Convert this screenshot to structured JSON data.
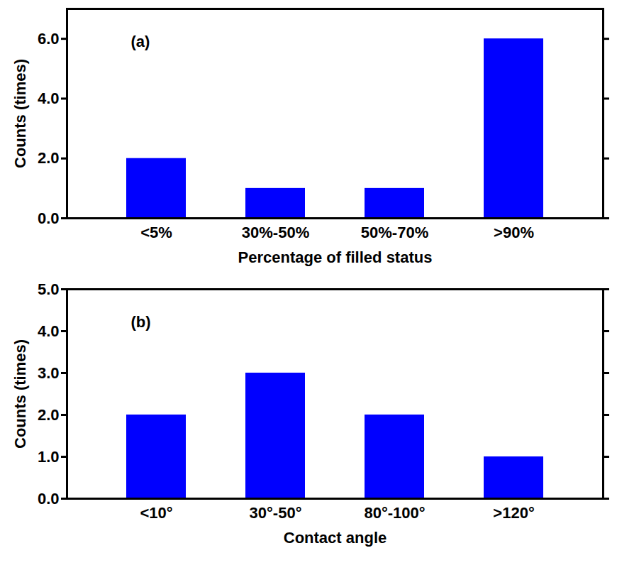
{
  "chart_data": [
    {
      "type": "bar",
      "annotations": [
        "(a)"
      ],
      "x_label": "Percentage of filled status",
      "y_label": "Counts (times)",
      "categories": [
        "<5%",
        "30%-50%",
        "50%-70%",
        ">90%"
      ],
      "values": [
        2,
        1,
        1,
        6
      ],
      "color": "#0000ff",
      "ylim": [
        0,
        7
      ],
      "yticks": [
        0,
        2,
        4,
        6
      ],
      "grid": false
    },
    {
      "type": "bar",
      "annotations": [
        "(b)"
      ],
      "x_label": "Contact angle",
      "y_label": "Counts (times)",
      "categories": [
        "<10°",
        "30°-50°",
        "80°-100°",
        ">120°"
      ],
      "values": [
        2,
        3,
        2,
        1
      ],
      "color": "#0000ff",
      "ylim": [
        0,
        5
      ],
      "yticks": [
        0,
        1,
        2,
        3,
        4,
        5
      ],
      "grid": false
    }
  ]
}
